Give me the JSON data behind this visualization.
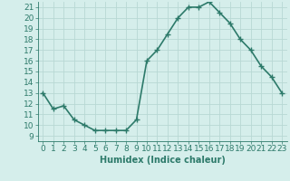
{
  "x": [
    0,
    1,
    2,
    3,
    4,
    5,
    6,
    7,
    8,
    9,
    10,
    11,
    12,
    13,
    14,
    15,
    16,
    17,
    18,
    19,
    20,
    21,
    22,
    23
  ],
  "y": [
    13,
    11.5,
    11.8,
    10.5,
    10.0,
    9.5,
    9.5,
    9.5,
    9.5,
    10.5,
    16.0,
    17.0,
    18.5,
    20.0,
    21.0,
    21.0,
    21.5,
    20.5,
    19.5,
    18.0,
    17.0,
    15.5,
    14.5,
    13.0
  ],
  "line_color": "#2d7a6a",
  "marker": "+",
  "marker_size": 4,
  "linewidth": 1.2,
  "xlabel": "Humidex (Indice chaleur)",
  "xlim": [
    -0.5,
    23.5
  ],
  "ylim": [
    8.5,
    21.5
  ],
  "yticks": [
    9,
    10,
    11,
    12,
    13,
    14,
    15,
    16,
    17,
    18,
    19,
    20,
    21
  ],
  "xticks": [
    0,
    1,
    2,
    3,
    4,
    5,
    6,
    7,
    8,
    9,
    10,
    11,
    12,
    13,
    14,
    15,
    16,
    17,
    18,
    19,
    20,
    21,
    22,
    23
  ],
  "bg_color": "#d5eeeb",
  "grid_color": "#b8d8d4",
  "tick_color": "#2d7a6a",
  "label_color": "#2d7a6a",
  "font_size": 6.5
}
